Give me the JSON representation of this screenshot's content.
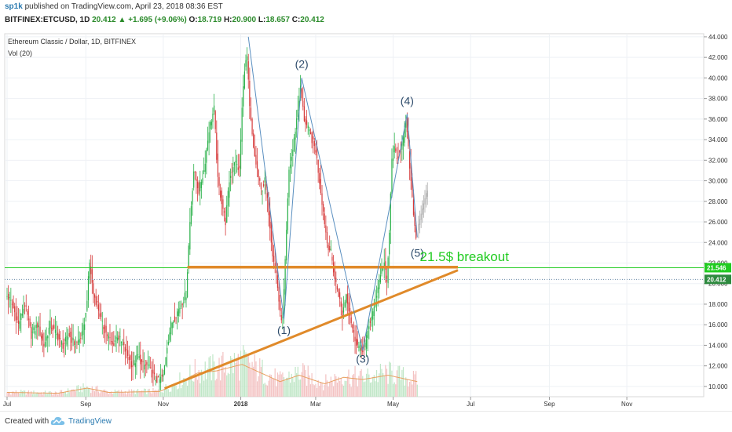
{
  "header": {
    "user": "sp1k",
    "published": "published on TradingView.com, April 23, 2018 08:36 EST",
    "symbol": "BITFINEX:ETCUSD, 1D",
    "last": "20.412",
    "change": "+1.695 (+9.06%)",
    "o_label": "O:",
    "o_value": "18.719",
    "h_label": "H:",
    "h_value": "20.900",
    "l_label": "L:",
    "l_value": "18.657",
    "c_label": "C:",
    "c_value": "20.412"
  },
  "footer": {
    "created_with": "Created with",
    "brand": "TradingView"
  },
  "colors": {
    "up": "#2bb14a",
    "down": "#d63a3a",
    "projection": "#aaaaaa",
    "wave_line": "#5a8fc0",
    "trend": "#e08a2a",
    "breakout": "#22cc22",
    "last_price_tag": "#2e8a3f"
  },
  "chart_data": {
    "type": "candlestick",
    "title": "Ethereum Classic / Dollar, 1D, BITFINEX",
    "indicator": "Vol (20)",
    "y_ticks": [
      "10.000",
      "12.000",
      "14.000",
      "16.000",
      "18.000",
      "20.000",
      "22.000",
      "24.000",
      "26.000",
      "28.000",
      "30.000",
      "32.000",
      "34.000",
      "36.000",
      "38.000",
      "40.000",
      "42.000",
      "44.000"
    ],
    "ylim": [
      9.0,
      44.3
    ],
    "x_ticks": [
      {
        "label": "Jul",
        "day": 0
      },
      {
        "label": "Sep",
        "day": 62
      },
      {
        "label": "Nov",
        "day": 123
      },
      {
        "label": "2018",
        "day": 184,
        "bold": true
      },
      {
        "label": "Mar",
        "day": 243
      },
      {
        "label": "May",
        "day": 304
      },
      {
        "label": "Jul",
        "day": 365
      },
      {
        "label": "Sep",
        "day": 427
      },
      {
        "label": "Nov",
        "day": 488
      }
    ],
    "price_path": [
      [
        0,
        19
      ],
      [
        5,
        18
      ],
      [
        10,
        16
      ],
      [
        15,
        18
      ],
      [
        20,
        15
      ],
      [
        25,
        16
      ],
      [
        30,
        14
      ],
      [
        35,
        16
      ],
      [
        40,
        15
      ],
      [
        45,
        14
      ],
      [
        50,
        15
      ],
      [
        55,
        14
      ],
      [
        60,
        15
      ],
      [
        63,
        17
      ],
      [
        66,
        22
      ],
      [
        69,
        19
      ],
      [
        72,
        18
      ],
      [
        76,
        16
      ],
      [
        80,
        15
      ],
      [
        84,
        14
      ],
      [
        88,
        15
      ],
      [
        92,
        14
      ],
      [
        96,
        13
      ],
      [
        100,
        12
      ],
      [
        104,
        13
      ],
      [
        108,
        12
      ],
      [
        112,
        12
      ],
      [
        116,
        11
      ],
      [
        120,
        10.5
      ],
      [
        124,
        11
      ],
      [
        127,
        14
      ],
      [
        130,
        16
      ],
      [
        134,
        17
      ],
      [
        138,
        18
      ],
      [
        142,
        19
      ],
      [
        145,
        26
      ],
      [
        148,
        31
      ],
      [
        152,
        29
      ],
      [
        156,
        31
      ],
      [
        160,
        35
      ],
      [
        164,
        37
      ],
      [
        167,
        30
      ],
      [
        170,
        28
      ],
      [
        173,
        26
      ],
      [
        176,
        30
      ],
      [
        180,
        32
      ],
      [
        184,
        31
      ],
      [
        186,
        37
      ],
      [
        188,
        41
      ],
      [
        190,
        42
      ],
      [
        192,
        37
      ],
      [
        195,
        33
      ],
      [
        198,
        31
      ],
      [
        201,
        29
      ],
      [
        204,
        30
      ],
      [
        207,
        27
      ],
      [
        210,
        23
      ],
      [
        213,
        21
      ],
      [
        216,
        17
      ],
      [
        218,
        16.5
      ],
      [
        220,
        22
      ],
      [
        223,
        31
      ],
      [
        226,
        33
      ],
      [
        229,
        36
      ],
      [
        232,
        39
      ],
      [
        235,
        36
      ],
      [
        238,
        35
      ],
      [
        241,
        34
      ],
      [
        244,
        33
      ],
      [
        247,
        30
      ],
      [
        250,
        27
      ],
      [
        253,
        24
      ],
      [
        256,
        23
      ],
      [
        259,
        20.5
      ],
      [
        262,
        19
      ],
      [
        265,
        17
      ],
      [
        268,
        19
      ],
      [
        271,
        17
      ],
      [
        274,
        15
      ],
      [
        277,
        14
      ],
      [
        280,
        13.5
      ],
      [
        283,
        14
      ],
      [
        286,
        16
      ],
      [
        289,
        17
      ],
      [
        292,
        19
      ],
      [
        295,
        21
      ],
      [
        298,
        22
      ],
      [
        300,
        20
      ],
      [
        302,
        25
      ],
      [
        304,
        32
      ],
      [
        306,
        33
      ],
      [
        308,
        32
      ],
      [
        310,
        33
      ],
      [
        313,
        34
      ],
      [
        315,
        36
      ],
      [
        317,
        33
      ],
      [
        319,
        30
      ],
      [
        321,
        27
      ],
      [
        323,
        24.5
      ]
    ],
    "projection_path": [
      [
        324,
        25.5
      ],
      [
        326,
        26.5
      ],
      [
        328,
        27.5
      ],
      [
        330,
        28.5
      ],
      [
        332,
        29
      ]
    ],
    "volume_path": [
      [
        0,
        0.1
      ],
      [
        40,
        0.08
      ],
      [
        63,
        0.2
      ],
      [
        80,
        0.1
      ],
      [
        120,
        0.12
      ],
      [
        130,
        0.25
      ],
      [
        150,
        0.55
      ],
      [
        165,
        0.6
      ],
      [
        185,
        0.75
      ],
      [
        200,
        0.55
      ],
      [
        215,
        0.35
      ],
      [
        230,
        0.5
      ],
      [
        250,
        0.3
      ],
      [
        265,
        0.45
      ],
      [
        280,
        0.4
      ],
      [
        300,
        0.5
      ],
      [
        323,
        0.35
      ]
    ],
    "wave_labels": [
      {
        "label": "(1)",
        "day": 218,
        "price": 15.1
      },
      {
        "label": "(2)",
        "day": 232,
        "price": 41.0
      },
      {
        "label": "(3)",
        "day": 280,
        "price": 12.3
      },
      {
        "label": "(4)",
        "day": 315,
        "price": 37.4
      },
      {
        "label": "(5)",
        "day": 323,
        "price": 22.6
      }
    ],
    "wave_line": [
      [
        190,
        44
      ],
      [
        218,
        16.5
      ],
      [
        232,
        40
      ],
      [
        280,
        13.5
      ],
      [
        315,
        36.5
      ],
      [
        323,
        24.5
      ]
    ],
    "support_line": {
      "from": [
        142,
        21.6
      ],
      "to": [
        355,
        21.6
      ]
    },
    "trend_line": {
      "from": [
        124,
        9.8
      ],
      "to": [
        355,
        21.3
      ]
    },
    "horizontal_line": 21.546,
    "last_price_line": 20.412,
    "annotation": {
      "text": "21.5$ breakout",
      "day": 325,
      "price": 22.2
    },
    "price_tags": [
      {
        "label": "21.546",
        "price": 21.546,
        "color": "#22cc22"
      },
      {
        "label": "20.412",
        "price": 20.412,
        "color": "#2e8a3f"
      }
    ]
  }
}
